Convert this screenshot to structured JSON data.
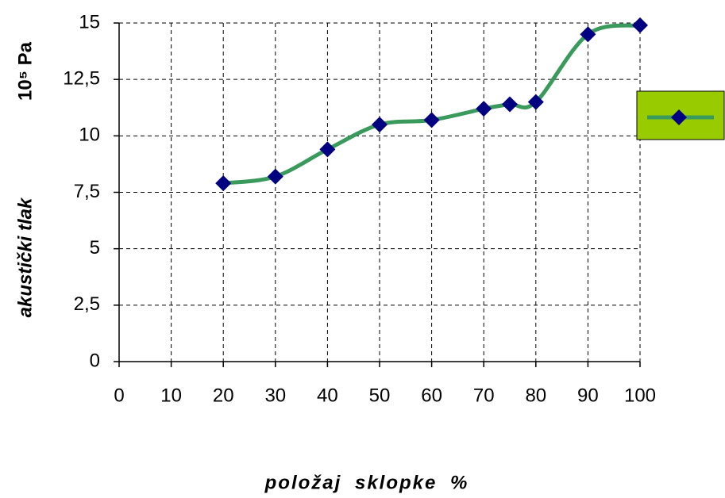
{
  "chart_data": {
    "type": "line",
    "ylabel": "akustički tlak",
    "yunit": "10⁵ Pa",
    "xlabel": "položaj sklopke %",
    "x": [
      20,
      30,
      40,
      50,
      60,
      70,
      75,
      80,
      90,
      100
    ],
    "series": [
      {
        "color": "#3a9a5c",
        "marker_color": "#000080",
        "values": [
          7.9,
          8.2,
          9.4,
          10.5,
          10.7,
          11.2,
          11.4,
          11.5,
          14.5,
          14.9
        ]
      }
    ],
    "xlim": [
      0,
      100
    ],
    "xticks": [
      0,
      10,
      20,
      30,
      40,
      50,
      60,
      70,
      80,
      90,
      100
    ],
    "ylim": [
      0,
      15
    ],
    "yticks": [
      0,
      {
        "value": 2.5,
        "label": "2,5"
      },
      5,
      {
        "value": 7.5,
        "label": "7,5"
      },
      10,
      {
        "value": 12.5,
        "label": "12,5"
      },
      15
    ],
    "grid": true,
    "legend": {
      "position": "right",
      "fill": "#99cc00"
    }
  }
}
